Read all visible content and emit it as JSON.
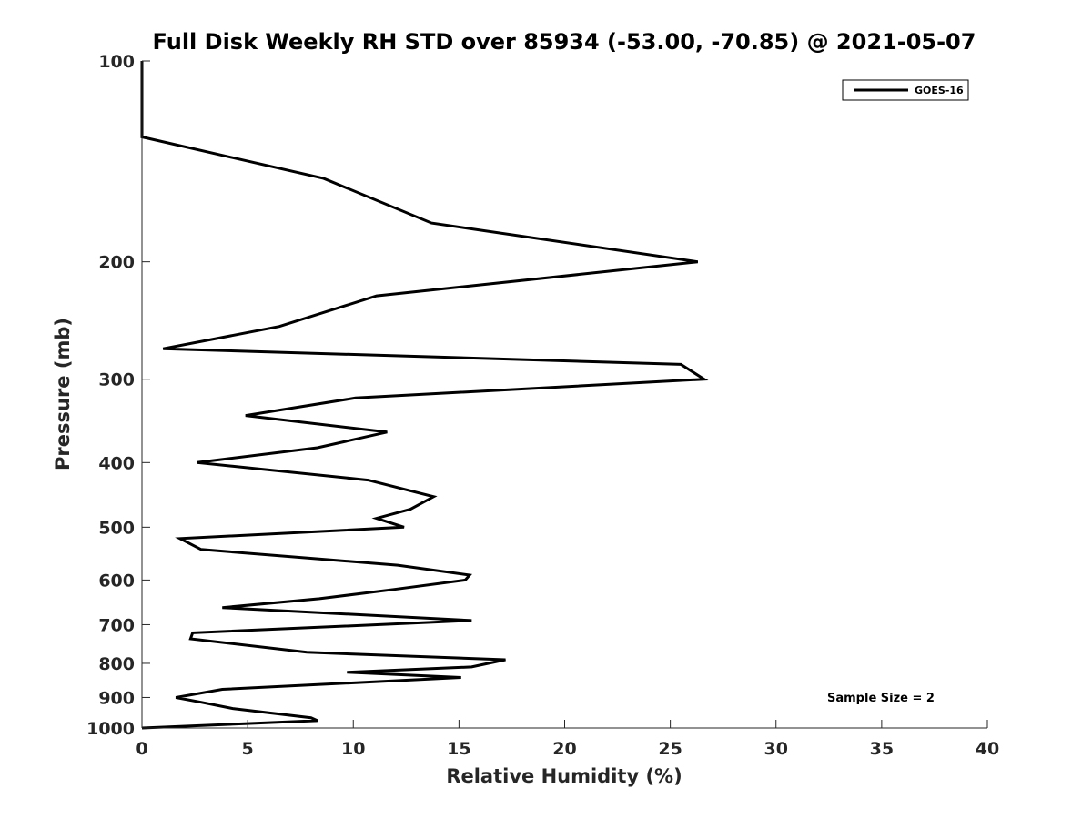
{
  "chart_data": {
    "type": "line",
    "title": "Full Disk Weekly RH STD over 85934 (-53.00, -70.85) @ 2021-05-07",
    "xlabel": "Relative Humidity (%)",
    "ylabel": "Pressure (mb)",
    "xlim": [
      0,
      40
    ],
    "ylim": [
      100,
      1000
    ],
    "yscale": "log",
    "y_reversed": true,
    "x_ticks": [
      "0",
      "5",
      "10",
      "15",
      "20",
      "25",
      "30",
      "35",
      "40"
    ],
    "x_tick_values": [
      0,
      5,
      10,
      15,
      20,
      25,
      30,
      35,
      40
    ],
    "y_ticks": [
      "100",
      "200",
      "300",
      "400",
      "500",
      "600",
      "700",
      "800",
      "900",
      "1000"
    ],
    "y_tick_values": [
      100,
      200,
      300,
      400,
      500,
      600,
      700,
      800,
      900,
      1000
    ],
    "grid": false,
    "legend_position": "top-right",
    "annotation": "Sample Size = 2",
    "series": [
      {
        "name": "GOES-16",
        "color": "#000000",
        "points": [
          [
            0.0,
            100
          ],
          [
            0.0,
            105
          ],
          [
            0.0,
            110
          ],
          [
            0.0,
            115
          ],
          [
            0.0,
            120
          ],
          [
            0.0,
            125
          ],
          [
            0.0,
            130
          ],
          [
            8.6,
            150
          ],
          [
            13.7,
            175
          ],
          [
            26.3,
            200
          ],
          [
            11.1,
            225
          ],
          [
            6.5,
            250
          ],
          [
            1.0,
            270
          ],
          [
            25.5,
            285
          ],
          [
            26.6,
            300
          ],
          [
            10.1,
            320
          ],
          [
            4.9,
            340
          ],
          [
            11.6,
            360
          ],
          [
            8.3,
            380
          ],
          [
            2.6,
            400
          ],
          [
            10.7,
            425
          ],
          [
            13.8,
            450
          ],
          [
            12.7,
            470
          ],
          [
            11.1,
            485
          ],
          [
            12.4,
            500
          ],
          [
            1.8,
            520
          ],
          [
            2.8,
            540
          ],
          [
            12.1,
            570
          ],
          [
            15.5,
            590
          ],
          [
            15.3,
            600
          ],
          [
            11.9,
            620
          ],
          [
            8.4,
            640
          ],
          [
            3.8,
            660
          ],
          [
            15.6,
            690
          ],
          [
            2.4,
            720
          ],
          [
            2.3,
            735
          ],
          [
            7.8,
            770
          ],
          [
            17.2,
            790
          ],
          [
            15.6,
            810
          ],
          [
            9.7,
            825
          ],
          [
            15.1,
            840
          ],
          [
            3.8,
            875
          ],
          [
            1.6,
            900
          ],
          [
            2.8,
            915
          ],
          [
            4.3,
            935
          ],
          [
            8.0,
            965
          ],
          [
            8.3,
            975
          ],
          [
            0.0,
            1000
          ]
        ]
      }
    ]
  }
}
